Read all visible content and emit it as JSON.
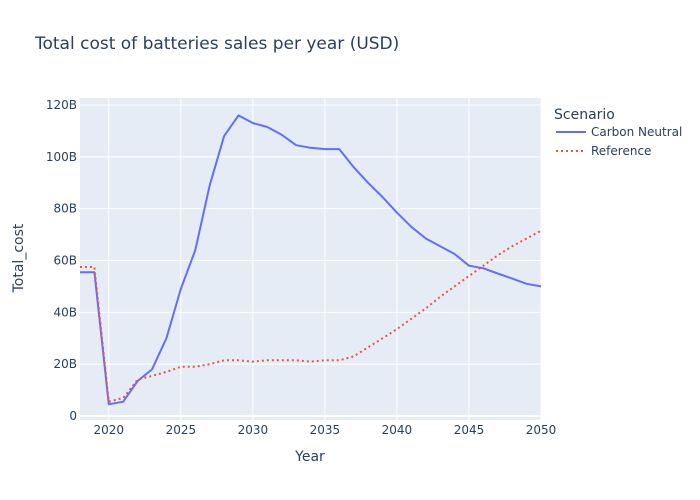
{
  "chart_data": {
    "type": "line",
    "title": "Total cost of batteries sales per year (USD)",
    "xlabel": "Year",
    "ylabel": "Total_cost",
    "xlim": [
      2018,
      2050
    ],
    "ylim": [
      0,
      120000000000
    ],
    "x_ticks": [
      2020,
      2025,
      2030,
      2035,
      2040,
      2045,
      2050
    ],
    "y_ticks": [
      {
        "value": 0,
        "label": "0"
      },
      {
        "value": 20000000000,
        "label": "20B"
      },
      {
        "value": 40000000000,
        "label": "40B"
      },
      {
        "value": 60000000000,
        "label": "60B"
      },
      {
        "value": 80000000000,
        "label": "80B"
      },
      {
        "value": 100000000000,
        "label": "100B"
      },
      {
        "value": 120000000000,
        "label": "120B"
      }
    ],
    "grid": true,
    "legend": {
      "title": "Scenario",
      "placement": "top-right"
    },
    "series": [
      {
        "name": "Carbon Neutral",
        "color": "#636efa",
        "dash": "solid",
        "x": [
          2018,
          2019,
          2020,
          2021,
          2022,
          2023,
          2024,
          2025,
          2026,
          2027,
          2028,
          2029,
          2030,
          2031,
          2032,
          2033,
          2034,
          2035,
          2036,
          2037,
          2038,
          2039,
          2040,
          2041,
          2042,
          2043,
          2044,
          2045,
          2046,
          2047,
          2048,
          2049,
          2050
        ],
        "y": [
          55500000000,
          55500000000,
          4500000000,
          5500000000,
          13500000000,
          18000000000,
          30000000000,
          49000000000,
          64000000000,
          89000000000,
          108000000000,
          116000000000,
          113000000000,
          111500000000,
          108500000000,
          104500000000,
          103500000000,
          103000000000,
          103000000000,
          96000000000,
          90000000000,
          84500000000,
          78500000000,
          73000000000,
          68500000000,
          65500000000,
          62500000000,
          58000000000,
          57000000000,
          55000000000,
          53000000000,
          51000000000,
          50000000000
        ]
      },
      {
        "name": "Reference",
        "color": "#ef553b",
        "dash": "dot",
        "x": [
          2018,
          2019,
          2020,
          2021,
          2022,
          2023,
          2024,
          2025,
          2026,
          2027,
          2028,
          2029,
          2030,
          2031,
          2032,
          2033,
          2034,
          2035,
          2036,
          2037,
          2038,
          2039,
          2040,
          2041,
          2042,
          2043,
          2044,
          2045,
          2046,
          2047,
          2048,
          2049,
          2050
        ],
        "y": [
          57500000000,
          57500000000,
          5500000000,
          7000000000,
          14000000000,
          15500000000,
          17000000000,
          19000000000,
          19000000000,
          20000000000,
          21500000000,
          21500000000,
          21000000000,
          21500000000,
          21500000000,
          21500000000,
          21000000000,
          21500000000,
          21500000000,
          23000000000,
          26500000000,
          30000000000,
          33500000000,
          37500000000,
          41500000000,
          46000000000,
          50000000000,
          54000000000,
          58000000000,
          62000000000,
          65500000000,
          68500000000,
          71500000000
        ]
      }
    ]
  }
}
